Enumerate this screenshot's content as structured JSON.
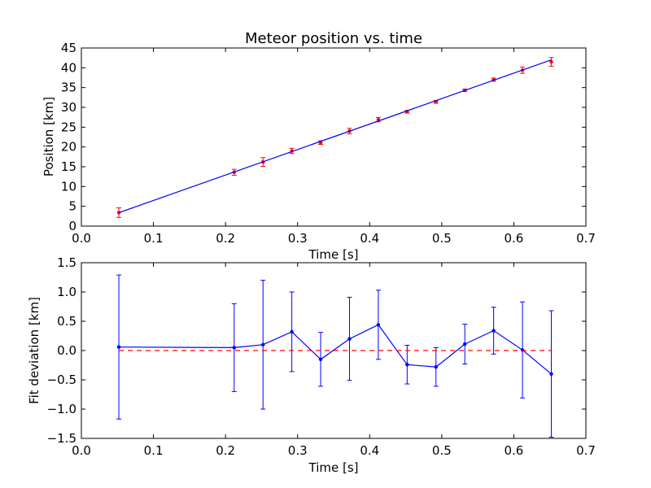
{
  "chart_data": [
    {
      "type": "scatter",
      "title": "Meteor position vs. time",
      "xlabel": "Time [s]",
      "ylabel": "Position [km]",
      "xlim": [
        0.0,
        0.7
      ],
      "ylim": [
        0,
        45
      ],
      "xticks": [
        "0.0",
        "0.1",
        "0.2",
        "0.3",
        "0.4",
        "0.5",
        "0.6",
        "0.7"
      ],
      "yticks": [
        "0",
        "5",
        "10",
        "15",
        "20",
        "25",
        "30",
        "35",
        "40",
        "45"
      ],
      "grid": false,
      "series": [
        {
          "kind": "errorbar",
          "color": "#ff0000",
          "x": [
            0.052,
            0.212,
            0.252,
            0.292,
            0.332,
            0.372,
            0.412,
            0.452,
            0.492,
            0.532,
            0.572,
            0.612,
            0.652
          ],
          "y": [
            3.4,
            13.6,
            16.2,
            19.0,
            21.1,
            24.0,
            26.9,
            28.9,
            31.4,
            34.3,
            37.0,
            39.4,
            41.5
          ],
          "yerr": [
            1.2,
            0.75,
            1.1,
            0.65,
            0.45,
            0.7,
            0.55,
            0.35,
            0.35,
            0.3,
            0.4,
            0.8,
            1.1
          ]
        },
        {
          "kind": "line",
          "color": "#0000ff",
          "x": [
            0.052,
            0.652
          ],
          "y": [
            3.4,
            42.0
          ]
        }
      ]
    },
    {
      "type": "line",
      "title": "",
      "xlabel": "Time [s]",
      "ylabel": "Fit deviation [km]",
      "xlim": [
        0.0,
        0.7
      ],
      "ylim": [
        -1.5,
        1.5
      ],
      "xticks": [
        "0.0",
        "0.1",
        "0.2",
        "0.3",
        "0.4",
        "0.5",
        "0.6",
        "0.7"
      ],
      "yticks": [
        "−1.5",
        "−1.0",
        "−0.5",
        "0.0",
        "0.5",
        "1.0",
        "1.5"
      ],
      "grid": false,
      "series": [
        {
          "kind": "errorbar-line",
          "color": "#0000ff",
          "x": [
            0.052,
            0.212,
            0.252,
            0.292,
            0.332,
            0.372,
            0.412,
            0.452,
            0.492,
            0.532,
            0.572,
            0.612,
            0.652
          ],
          "y": [
            0.06,
            0.05,
            0.1,
            0.32,
            -0.15,
            0.2,
            0.44,
            -0.24,
            -0.28,
            0.11,
            0.34,
            0.01,
            -0.4
          ],
          "yerr": [
            1.23,
            0.75,
            1.1,
            0.68,
            0.46,
            0.71,
            0.59,
            0.33,
            0.33,
            0.34,
            0.4,
            0.82,
            1.08
          ]
        },
        {
          "kind": "dashed-line",
          "color": "#ff0000",
          "x": [
            0.052,
            0.652
          ],
          "y": [
            0.0,
            0.0
          ]
        }
      ]
    }
  ]
}
